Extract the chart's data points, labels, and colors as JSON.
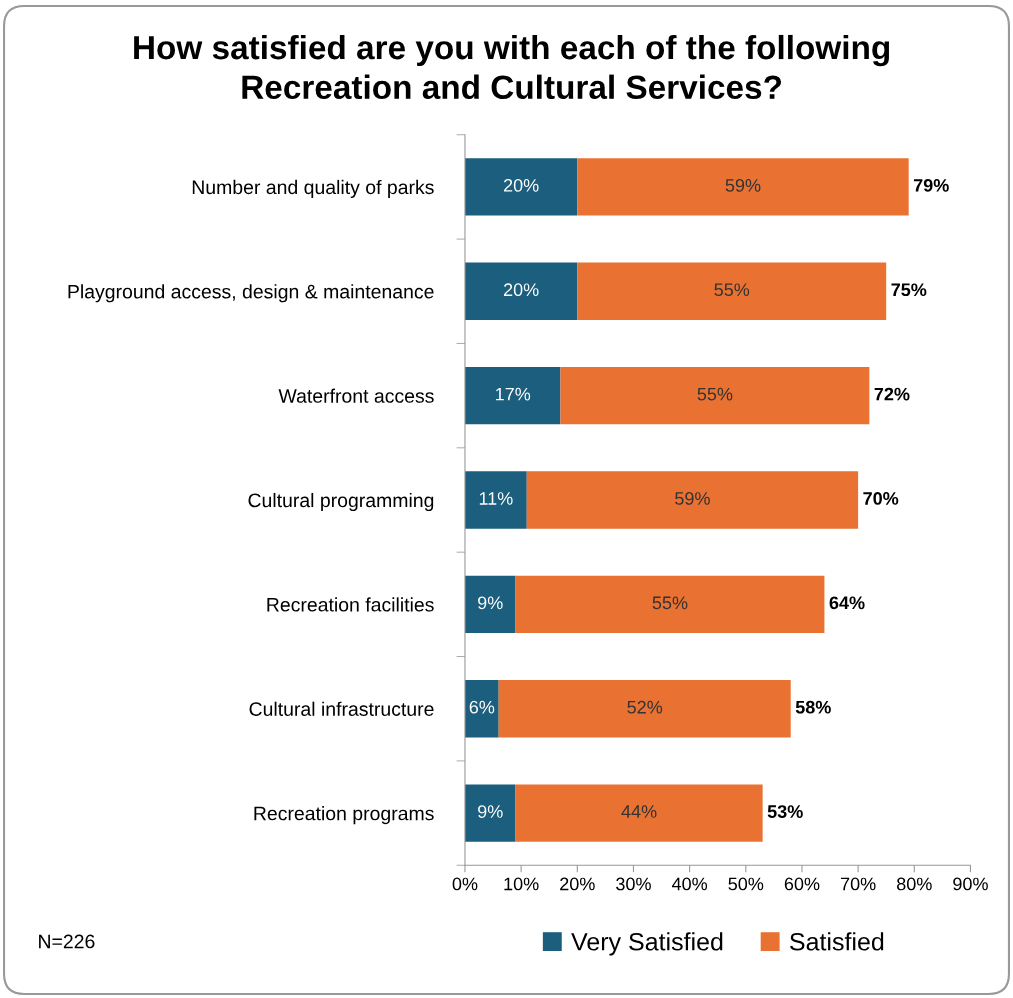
{
  "chart_data": {
    "type": "bar",
    "orientation": "horizontal",
    "stacked": true,
    "title": "How satisfied are you with each of the following\nRecreation and Cultural Services?",
    "categories": [
      "Number and quality of parks",
      "Playground access, design & maintenance",
      "Waterfront access",
      "Cultural programming",
      "Recreation facilities",
      "Cultural infrastructure",
      "Recreation programs"
    ],
    "series": [
      {
        "name": "Very Satisfied",
        "color": "#1b5e7e",
        "values": [
          20,
          20,
          17,
          11,
          9,
          6,
          9
        ],
        "value_labels": [
          "20%",
          "20%",
          "17%",
          "11%",
          "9%",
          "6%",
          "9%"
        ]
      },
      {
        "name": "Satisfied",
        "color": "#e97132",
        "values": [
          59,
          55,
          55,
          59,
          55,
          52,
          44
        ],
        "value_labels": [
          "59%",
          "55%",
          "55%",
          "59%",
          "55%",
          "52%",
          "44%"
        ]
      }
    ],
    "totals": [
      "79%",
      "75%",
      "72%",
      "70%",
      "64%",
      "58%",
      "53%"
    ],
    "xlim": [
      0,
      90
    ],
    "xticks": [
      {
        "value": 0,
        "label": "0%"
      },
      {
        "value": 10,
        "label": "10%"
      },
      {
        "value": 20,
        "label": "20%"
      },
      {
        "value": 30,
        "label": "30%"
      },
      {
        "value": 40,
        "label": "40%"
      },
      {
        "value": 50,
        "label": "50%"
      },
      {
        "value": 60,
        "label": "60%"
      },
      {
        "value": 70,
        "label": "70%"
      },
      {
        "value": 80,
        "label": "80%"
      },
      {
        "value": 90,
        "label": "90%"
      }
    ],
    "legend": "bottom",
    "grid": false,
    "annotations": [
      "N=226"
    ]
  }
}
